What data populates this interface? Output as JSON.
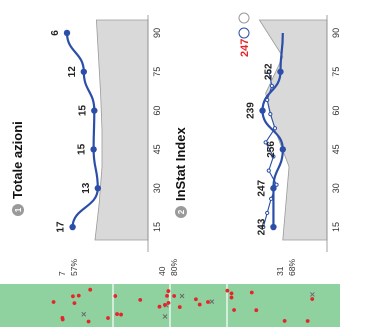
{
  "colors": {
    "series": "#2b4fa8",
    "highlight": "#e4262b",
    "pitch": "#8fd2a0",
    "area": "#d9d9d9"
  },
  "pitch_stats": [
    {
      "count": "7",
      "pct": "57%"
    },
    {
      "count": "40",
      "pct": "80%"
    },
    {
      "count": "31",
      "pct": "68%"
    }
  ],
  "pitch_marks": [
    {
      "type": "dot"
    },
    {
      "type": "dot"
    },
    {
      "type": "x"
    },
    {
      "type": "dot"
    },
    {
      "type": "dot"
    },
    {
      "type": "dot"
    },
    {
      "type": "dot"
    },
    {
      "type": "x"
    },
    {
      "type": "dot"
    },
    {
      "type": "dot"
    },
    {
      "type": "dot"
    },
    {
      "type": "dot"
    },
    {
      "type": "dot"
    },
    {
      "type": "x"
    },
    {
      "type": "dot"
    },
    {
      "type": "dot"
    },
    {
      "type": "dot"
    },
    {
      "type": "dot"
    },
    {
      "type": "dot"
    },
    {
      "type": "x"
    },
    {
      "type": "dot"
    },
    {
      "type": "dot"
    },
    {
      "type": "dot"
    },
    {
      "type": "dot"
    },
    {
      "type": "x"
    },
    {
      "type": "dot"
    },
    {
      "type": "dot"
    },
    {
      "type": "dot"
    },
    {
      "type": "dot"
    },
    {
      "type": "dot"
    },
    {
      "type": "dot"
    },
    {
      "type": "dot"
    },
    {
      "type": "x"
    },
    {
      "type": "dot"
    },
    {
      "type": "dot"
    },
    {
      "type": "dot"
    },
    {
      "type": "dot"
    },
    {
      "type": "dot"
    }
  ],
  "chart_data": [
    {
      "type": "line",
      "title": "Totale azioni",
      "badge": "1",
      "x": [
        15,
        30,
        45,
        60,
        75,
        90
      ],
      "xticks": [
        "15",
        "30",
        "45",
        "60",
        "75",
        "90"
      ],
      "xlim": [
        10,
        95
      ],
      "values": [
        17,
        13,
        15,
        15,
        12,
        6
      ],
      "labels": [
        "17",
        "13",
        "15",
        "15",
        "12",
        "6"
      ],
      "lateral": [
        0.18,
        0.54,
        0.48,
        0.49,
        0.34,
        0.1
      ],
      "area_profile": [
        0.5,
        0.56,
        0.6,
        0.6,
        0.58,
        0.55,
        0.52
      ]
    },
    {
      "type": "line",
      "title": "InStat Index",
      "badge": "2",
      "x": [
        15,
        30,
        45,
        60,
        75,
        90
      ],
      "xticks": [
        "15",
        "30",
        "45",
        "60",
        "75",
        "90"
      ],
      "xlim": [
        10,
        95
      ],
      "values": [
        243,
        247,
        256,
        239,
        252,
        247
      ],
      "labels": [
        "243",
        "247",
        "256",
        "239",
        "252",
        "247"
      ],
      "legend_value": "247",
      "lateral": [
        0.48,
        0.48,
        0.6,
        0.34,
        0.57,
        0.6
      ],
      "thin_lateral": [
        0.35,
        0.4,
        0.45,
        0.52,
        0.42,
        0.48,
        0.38,
        0.5,
        0.44,
        0.4,
        0.46,
        0.42
      ],
      "area_profile": [
        0.6,
        0.64,
        0.68,
        0.5,
        0.38,
        0.6,
        0.3
      ]
    }
  ]
}
